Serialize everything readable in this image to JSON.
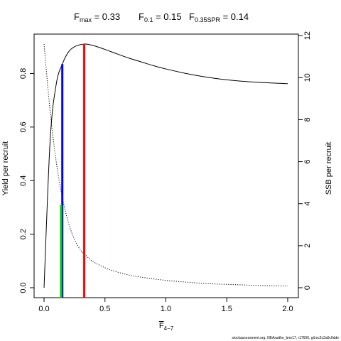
{
  "chart_data": {
    "type": "line",
    "title": {
      "fmax_label": "F",
      "fmax_sub": "max",
      "fmax_value": " = 0.33",
      "f01_label": "F",
      "f01_sub": "0.1",
      "f01_value": " = 0.15",
      "fspr_label": "F",
      "fspr_sub": "0.35SPR",
      "fspr_value": " = 0.14"
    },
    "xlabel": "F",
    "xlabel_sub": "4−7",
    "ylabel_left": "Yield per recruit",
    "ylabel_right": "SSB per recruit",
    "xlim": [
      0,
      2.0
    ],
    "ylim_left": [
      0,
      0.91
    ],
    "ylim_right": [
      0,
      11.6
    ],
    "x_ticks": [
      "0.0",
      "0.5",
      "1.0",
      "1.5",
      "2.0"
    ],
    "x_tick_values": [
      0,
      0.5,
      1.0,
      1.5,
      2.0
    ],
    "y_left_ticks": [
      "0.0",
      "0.2",
      "0.4",
      "0.6",
      "0.8"
    ],
    "y_left_tick_values": [
      0,
      0.2,
      0.4,
      0.6,
      0.8
    ],
    "y_right_ticks": [
      "0",
      "2",
      "4",
      "6",
      "8",
      "10",
      "12"
    ],
    "y_right_tick_values": [
      0,
      2,
      4,
      6,
      8,
      10,
      12
    ],
    "series": [
      {
        "axis": "left",
        "style": "solid",
        "x": [
          0,
          0.05,
          0.1,
          0.15,
          0.2,
          0.25,
          0.33,
          0.4,
          0.5,
          0.6,
          0.7,
          0.8,
          0.9,
          1.0,
          1.2,
          1.4,
          1.6,
          1.8,
          2.0
        ],
        "y": [
          0.0,
          0.55,
          0.76,
          0.835,
          0.88,
          0.9,
          0.91,
          0.905,
          0.89,
          0.873,
          0.857,
          0.843,
          0.829,
          0.817,
          0.797,
          0.782,
          0.772,
          0.766,
          0.762
        ]
      },
      {
        "axis": "right",
        "style": "dotted",
        "x": [
          0,
          0.05,
          0.1,
          0.15,
          0.2,
          0.25,
          0.3,
          0.35,
          0.4,
          0.5,
          0.6,
          0.7,
          0.8,
          0.9,
          1.0,
          1.2,
          1.4,
          1.6,
          1.8,
          2.0
        ],
        "y": [
          11.6,
          8.4,
          6.0,
          4.3,
          3.1,
          2.3,
          1.8,
          1.5,
          1.25,
          0.95,
          0.75,
          0.6,
          0.5,
          0.42,
          0.35,
          0.25,
          0.18,
          0.14,
          0.1,
          0.08
        ]
      }
    ],
    "reference_lines": [
      {
        "name": "Fmax",
        "x": 0.33,
        "y_top": 0.91,
        "color": "#ff0000"
      },
      {
        "name": "F0.1",
        "x": 0.15,
        "y_top": 0.835,
        "color": "#0000ff"
      },
      {
        "name": "F0.35SPR",
        "x": 0.14,
        "y_top": 0.31,
        "color": "#00cc00"
      }
    ],
    "grid": false,
    "credit": "stockassessment.org, NEAsaithe_bmr17, r17606, git:ec2c2a0c6dde"
  }
}
